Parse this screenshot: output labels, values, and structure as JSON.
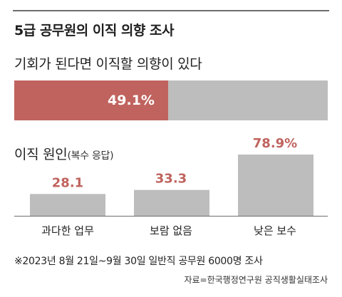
{
  "title": "5급 공무원의 이직 의향 조사",
  "subtitle": "기회가 된다면 이직할 의향이 있다",
  "proportion": {
    "value": 49.1,
    "label": "49.1%"
  },
  "section_title": "이직 원인",
  "section_note": "(복수 응답)",
  "chart_data": {
    "type": "bar",
    "categories": [
      "과다한 업무",
      "보람 없음",
      "낮은 보수"
    ],
    "values": [
      28.1,
      33.3,
      78.9
    ],
    "value_labels": [
      "28.1",
      "33.3",
      "78.9%"
    ],
    "title": "",
    "xlabel": "",
    "ylabel": "",
    "ylim": [
      0,
      100
    ]
  },
  "footnote": "※2023년 8월 21일~9월 30일 일반직 공무원 6000명 조사",
  "source": "자료=한국행정연구원 공직생활실태조사",
  "colors": {
    "accent": "#c0635e",
    "bar": "#bdbdbd",
    "rule": "#6d6d6d"
  }
}
